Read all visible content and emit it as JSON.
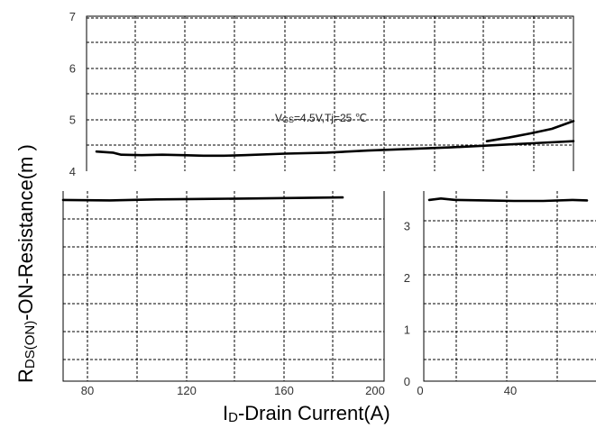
{
  "chart_data": [
    {
      "type": "line",
      "panel": "top-left",
      "annotation": {
        "parts": [
          {
            "text": "V",
            "sub": false
          },
          {
            "text": "GS",
            "sub": true
          },
          {
            "text": "=4.5V,Tj=25 ℃",
            "sub": false
          }
        ]
      },
      "xlim": [
        70,
        200
      ],
      "ylim": [
        4,
        7
      ],
      "yticks": [
        "4",
        "5",
        "6",
        "7"
      ],
      "grid": true,
      "series": [
        {
          "x": [
            84,
            88,
            90,
            95,
            100,
            105,
            110,
            115,
            120,
            130,
            140,
            150,
            160,
            170,
            180,
            190,
            200
          ],
          "y": [
            4.38,
            4.36,
            4.32,
            4.31,
            4.32,
            4.31,
            4.3,
            4.3,
            4.31,
            4.34,
            4.36,
            4.4,
            4.43,
            4.46,
            4.5,
            4.54,
            4.58
          ]
        }
      ]
    },
    {
      "type": "line",
      "panel": "top-right-extension",
      "xlim": [
        200,
        220
      ],
      "ylim": [
        4,
        7
      ],
      "series": [
        {
          "x": [
            200,
            205,
            210,
            215,
            220
          ],
          "y": [
            4.58,
            4.65,
            4.73,
            4.82,
            4.97
          ]
        }
      ]
    },
    {
      "type": "line",
      "panel": "bottom-left",
      "xlim": [
        70,
        200
      ],
      "xticks": [
        "80",
        "120",
        "160",
        "200"
      ],
      "xlabel": {
        "parts": [
          {
            "text": "I",
            "sub": false
          },
          {
            "text": "D",
            "sub": true
          },
          {
            "text": "-Drain Current(A)",
            "sub": false
          }
        ]
      },
      "grid": true,
      "series": [
        {
          "x": [
            70,
            90,
            110,
            130,
            150,
            170,
            190
          ],
          "y": [
            3.42,
            3.41,
            3.43,
            3.44,
            3.45,
            3.46,
            3.47
          ]
        }
      ]
    },
    {
      "type": "line",
      "panel": "bottom-right",
      "xlim": [
        0,
        65
      ],
      "ylim": [
        0,
        3.5
      ],
      "xticks": [
        "0",
        "40"
      ],
      "yticks": [
        "0",
        "1",
        "2",
        "3"
      ],
      "grid": true,
      "series": [
        {
          "x": [
            11,
            15,
            20,
            30,
            40,
            50,
            60,
            65
          ],
          "y": [
            3.42,
            3.45,
            3.42,
            3.41,
            3.4,
            3.4,
            3.42,
            3.41
          ]
        }
      ]
    }
  ],
  "ylabel": {
    "parts": [
      {
        "text": "R",
        "sub": false
      },
      {
        "text": "DS(ON)",
        "sub": true
      },
      {
        "text": "-ON-Resistance(m   )",
        "sub": false
      }
    ]
  }
}
